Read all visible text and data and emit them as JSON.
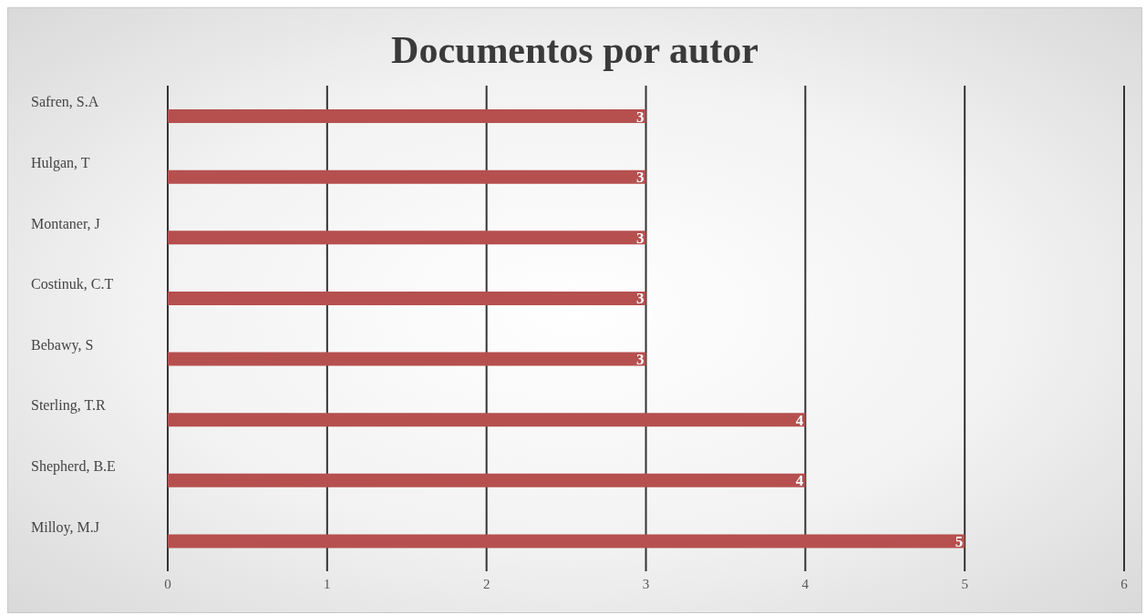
{
  "chart_data": {
    "type": "bar",
    "orientation": "horizontal",
    "title": "Documentos por autor",
    "categories": [
      "Safren, S.A",
      "Hulgan, T",
      "Montaner, J",
      "Costinuk, C.T",
      "Bebawy, S",
      "Sterling, T.R",
      "Shepherd, B.E",
      "Milloy, M.J"
    ],
    "values": [
      3,
      3,
      3,
      3,
      3,
      4,
      4,
      5
    ],
    "color": "#b5504f",
    "xlim": [
      0,
      6
    ],
    "xticks": [
      0,
      1,
      2,
      3,
      4,
      5,
      6
    ],
    "grid": "x",
    "data_labels": true
  }
}
